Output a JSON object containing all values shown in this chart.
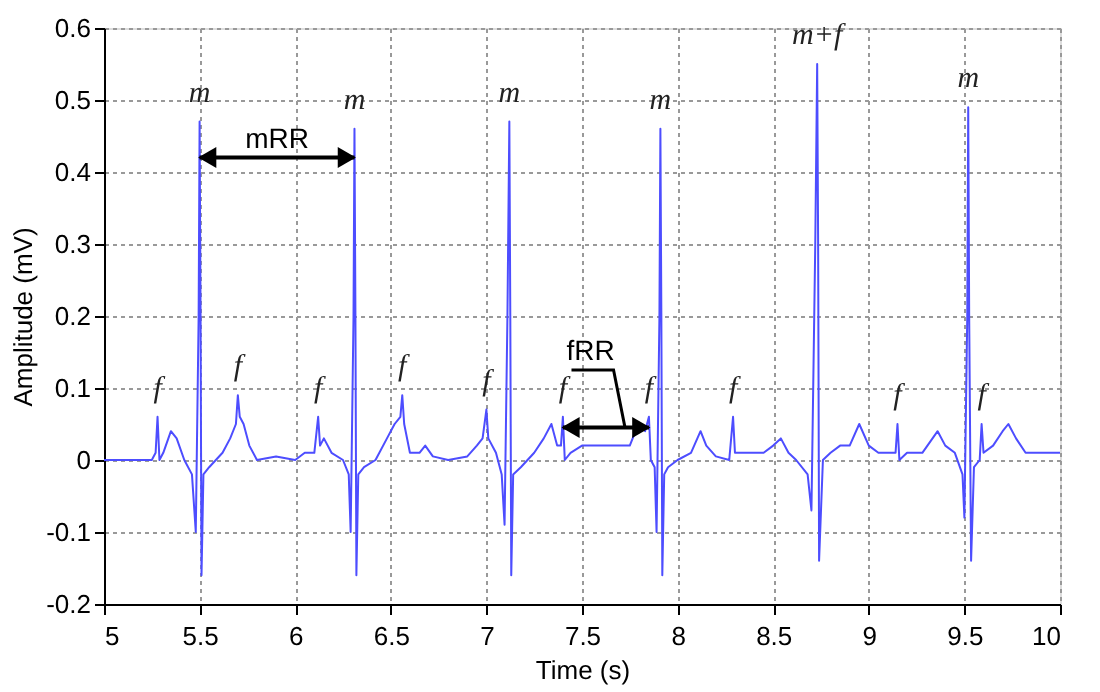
{
  "chart_data": {
    "type": "line",
    "xlabel": "Time (s)",
    "ylabel": "Amplitude (mV)",
    "xlim": [
      5,
      10
    ],
    "xticks": [
      5,
      5.5,
      6,
      6.5,
      7,
      7.5,
      8,
      8.5,
      9,
      9.5,
      10
    ],
    "ylim": [
      -0.2,
      0.6
    ],
    "yticks": [
      -0.2,
      -0.1,
      0,
      0.1,
      0.2,
      0.3,
      0.4,
      0.5,
      0.6
    ],
    "grid": true,
    "marker": "none",
    "line_style": "solid",
    "series": [
      {
        "color": "#4d4dff",
        "x": [
          5.0,
          5.25,
          5.27,
          5.28,
          5.29,
          5.31,
          5.35,
          5.38,
          5.42,
          5.46,
          5.48,
          5.495,
          5.5,
          5.505,
          5.51,
          5.52,
          5.55,
          5.62,
          5.66,
          5.69,
          5.7,
          5.71,
          5.73,
          5.76,
          5.8,
          5.9,
          6.0,
          6.05,
          6.1,
          6.12,
          6.13,
          6.15,
          6.19,
          6.25,
          6.28,
          6.29,
          6.305,
          6.31,
          6.315,
          6.32,
          6.33,
          6.36,
          6.42,
          6.48,
          6.52,
          6.55,
          6.56,
          6.57,
          6.6,
          6.65,
          6.68,
          6.72,
          6.8,
          6.9,
          6.95,
          6.98,
          7.0,
          7.01,
          7.05,
          7.08,
          7.095,
          7.11,
          7.12,
          7.125,
          7.13,
          7.14,
          7.18,
          7.25,
          7.3,
          7.34,
          7.37,
          7.39,
          7.4,
          7.41,
          7.44,
          7.5,
          7.6,
          7.7,
          7.75,
          7.78,
          7.8,
          7.83,
          7.85,
          7.86,
          7.88,
          7.89,
          7.905,
          7.91,
          7.915,
          7.92,
          7.93,
          7.95,
          8.0,
          8.07,
          8.12,
          8.15,
          8.2,
          8.27,
          8.29,
          8.3,
          8.35,
          8.45,
          8.5,
          8.54,
          8.58,
          8.62,
          8.68,
          8.7,
          8.72,
          8.73,
          8.735,
          8.74,
          8.76,
          8.8,
          8.85,
          8.9,
          8.95,
          9.0,
          9.05,
          9.1,
          9.14,
          9.15,
          9.16,
          9.2,
          9.28,
          9.36,
          9.4,
          9.45,
          9.49,
          9.5,
          9.515,
          9.52,
          9.525,
          9.535,
          9.55,
          9.58,
          9.59,
          9.6,
          9.65,
          9.7,
          9.73,
          9.77,
          9.82,
          9.9,
          10.0
        ],
        "values": [
          0.0,
          0.0,
          0.01,
          0.06,
          0.0,
          0.01,
          0.04,
          0.03,
          0.0,
          -0.02,
          -0.1,
          0.2,
          0.47,
          0.2,
          -0.16,
          -0.02,
          -0.01,
          0.01,
          0.03,
          0.05,
          0.09,
          0.06,
          0.05,
          0.02,
          0.0,
          0.005,
          0.0,
          0.01,
          0.01,
          0.06,
          0.02,
          0.03,
          0.01,
          0.0,
          -0.02,
          -0.1,
          0.2,
          0.46,
          0.2,
          -0.16,
          -0.02,
          -0.01,
          0.0,
          0.03,
          0.05,
          0.06,
          0.09,
          0.05,
          0.01,
          0.01,
          0.02,
          0.005,
          0.0,
          0.005,
          0.02,
          0.03,
          0.07,
          0.03,
          0.01,
          -0.02,
          -0.09,
          0.2,
          0.47,
          0.2,
          -0.16,
          -0.02,
          -0.01,
          0.01,
          0.03,
          0.05,
          0.02,
          0.02,
          0.06,
          0.0,
          0.01,
          0.02,
          0.02,
          0.02,
          0.02,
          0.04,
          0.05,
          0.04,
          0.06,
          0.0,
          -0.01,
          -0.1,
          0.2,
          0.46,
          0.2,
          -0.16,
          -0.02,
          -0.01,
          0.0,
          0.01,
          0.04,
          0.02,
          0.005,
          0.0,
          0.06,
          0.01,
          0.01,
          0.01,
          0.02,
          0.03,
          0.01,
          0.0,
          -0.02,
          -0.07,
          0.3,
          0.55,
          0.3,
          -0.14,
          0.0,
          0.01,
          0.02,
          0.02,
          0.05,
          0.02,
          0.01,
          0.01,
          0.01,
          0.05,
          0.0,
          0.01,
          0.01,
          0.04,
          0.02,
          0.01,
          -0.02,
          -0.08,
          0.2,
          0.49,
          0.2,
          -0.14,
          -0.01,
          0.0,
          0.05,
          0.01,
          0.02,
          0.04,
          0.05,
          0.03,
          0.01,
          0.01,
          0.01
        ]
      }
    ],
    "annotations": [
      {
        "text": "m",
        "x": 5.5,
        "y": 0.47
      },
      {
        "text": "m",
        "x": 6.31,
        "y": 0.46
      },
      {
        "text": "m",
        "x": 7.12,
        "y": 0.47
      },
      {
        "text": "m",
        "x": 7.91,
        "y": 0.46
      },
      {
        "text": "m+f",
        "x": 8.73,
        "y": 0.55
      },
      {
        "text": "m",
        "x": 9.52,
        "y": 0.49
      },
      {
        "text": "f",
        "x": 5.28,
        "y": 0.06
      },
      {
        "text": "f",
        "x": 5.7,
        "y": 0.09
      },
      {
        "text": "f",
        "x": 6.12,
        "y": 0.06
      },
      {
        "text": "f",
        "x": 6.56,
        "y": 0.09
      },
      {
        "text": "f",
        "x": 7.0,
        "y": 0.07
      },
      {
        "text": "f",
        "x": 7.4,
        "y": 0.06
      },
      {
        "text": "f",
        "x": 7.85,
        "y": 0.06
      },
      {
        "text": "f",
        "x": 8.29,
        "y": 0.06
      },
      {
        "text": "f",
        "x": 9.15,
        "y": 0.05
      },
      {
        "text": "f",
        "x": 9.59,
        "y": 0.05
      },
      "mRR",
      "fRR"
    ]
  }
}
